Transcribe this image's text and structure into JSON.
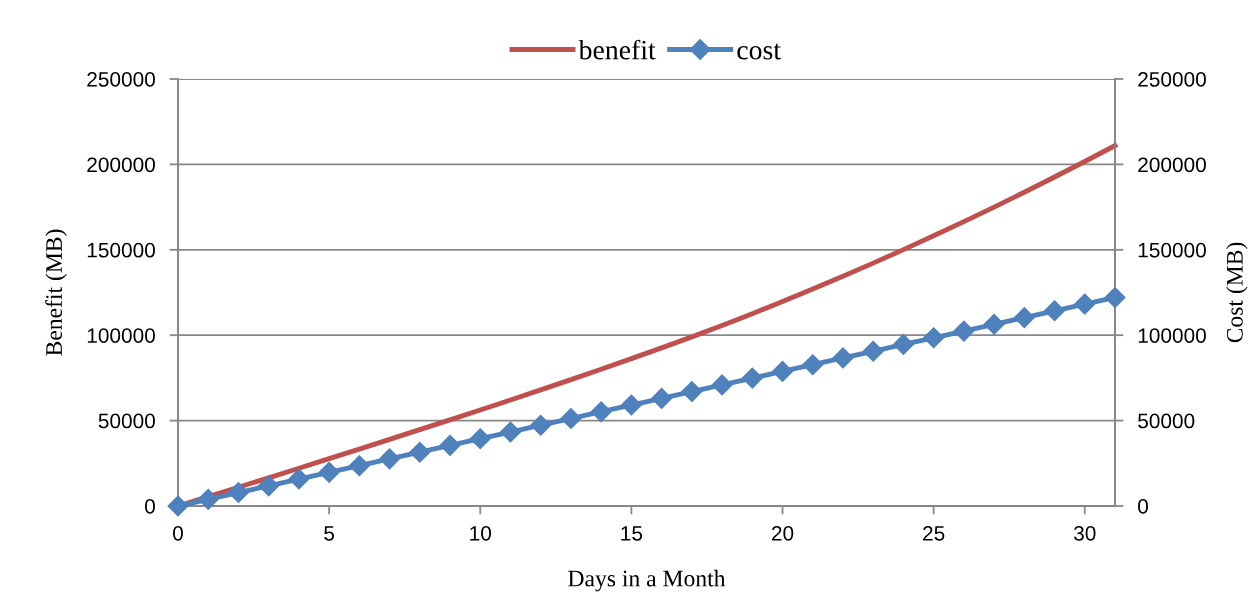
{
  "chart_data": {
    "type": "line",
    "xlabel": "Days in a Month",
    "ylabel": "Benefit (MB)",
    "y2label": "Cost (MB)",
    "x": [
      0,
      1,
      2,
      3,
      4,
      5,
      6,
      7,
      8,
      9,
      10,
      11,
      12,
      13,
      14,
      15,
      16,
      17,
      18,
      19,
      20,
      21,
      22,
      23,
      24,
      25,
      26,
      27,
      28,
      29,
      30,
      31
    ],
    "series": [
      {
        "name": "benefit",
        "color": "#c0504d",
        "marker": "none",
        "values": [
          0,
          5500,
          11000,
          16500,
          22100,
          27700,
          33300,
          39000,
          44700,
          50400,
          56200,
          62100,
          68000,
          74000,
          80100,
          86300,
          92600,
          99000,
          105700,
          112600,
          119700,
          127000,
          134500,
          142200,
          150100,
          158200,
          166500,
          175000,
          183700,
          192600,
          201700,
          211000
        ]
      },
      {
        "name": "cost",
        "color": "#4f81bd",
        "marker": "diamond",
        "axis": "y2",
        "values": [
          0,
          3900,
          7900,
          11800,
          15800,
          19700,
          23600,
          27600,
          31500,
          35500,
          39400,
          43300,
          47300,
          51200,
          55200,
          59100,
          63000,
          67000,
          70900,
          74900,
          78800,
          82700,
          86700,
          90600,
          94600,
          98500,
          102400,
          106400,
          110300,
          114300,
          118200,
          122100
        ]
      }
    ],
    "xlim": [
      0,
      31
    ],
    "xticks": [
      0,
      5,
      10,
      15,
      20,
      25,
      30
    ],
    "ylim": [
      0,
      250000
    ],
    "yticks": [
      0,
      50000,
      100000,
      150000,
      200000,
      250000
    ],
    "y2lim": [
      0,
      250000
    ],
    "y2ticks": [
      0,
      50000,
      100000,
      150000,
      200000,
      250000
    ],
    "grid": "y",
    "legend": "top",
    "line_style": "solid"
  }
}
